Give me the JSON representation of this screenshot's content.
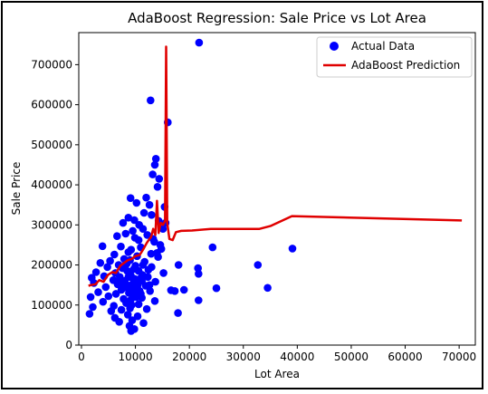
{
  "chart_data": {
    "type": "scatter",
    "title": "AdaBoost Regression: Sale Price vs Lot Area",
    "xlabel": "Lot Area",
    "ylabel": "Sale Price",
    "xlim": [
      -500,
      73000
    ],
    "ylim": [
      0,
      780000
    ],
    "xticks": [
      0,
      10000,
      20000,
      30000,
      40000,
      50000,
      60000,
      70000
    ],
    "yticks": [
      0,
      100000,
      200000,
      300000,
      400000,
      500000,
      600000,
      700000
    ],
    "legend": {
      "placement": "top-right",
      "entries": [
        "Actual Data",
        "AdaBoost Prediction"
      ]
    },
    "colors": {
      "scatter": "#0000ff",
      "line": "#e00000"
    },
    "series": [
      {
        "name": "Actual Data",
        "kind": "scatter",
        "points": [
          [
            21800,
            755000
          ],
          [
            12800,
            611000
          ],
          [
            16000,
            556000
          ],
          [
            13800,
            465000
          ],
          [
            13600,
            450000
          ],
          [
            13200,
            426000
          ],
          [
            14400,
            415000
          ],
          [
            14100,
            395000
          ],
          [
            12000,
            368000
          ],
          [
            9100,
            367000
          ],
          [
            10200,
            355000
          ],
          [
            12600,
            350000
          ],
          [
            15400,
            345000
          ],
          [
            13000,
            325000
          ],
          [
            11600,
            330000
          ],
          [
            8700,
            318000
          ],
          [
            9800,
            312000
          ],
          [
            7700,
            305000
          ],
          [
            10700,
            300000
          ],
          [
            11400,
            290000
          ],
          [
            9500,
            285000
          ],
          [
            8200,
            278000
          ],
          [
            12200,
            275000
          ],
          [
            6600,
            272000
          ],
          [
            9900,
            268000
          ],
          [
            10600,
            262000
          ],
          [
            13500,
            258000
          ],
          [
            14600,
            250000
          ],
          [
            3900,
            247000
          ],
          [
            7300,
            246000
          ],
          [
            11000,
            244000
          ],
          [
            24300,
            244000
          ],
          [
            39100,
            241000
          ],
          [
            9200,
            238000
          ],
          [
            8700,
            232000
          ],
          [
            12900,
            228000
          ],
          [
            6100,
            226000
          ],
          [
            10300,
            222000
          ],
          [
            14200,
            220000
          ],
          [
            7900,
            215000
          ],
          [
            9000,
            212000
          ],
          [
            5300,
            210000
          ],
          [
            11700,
            208000
          ],
          [
            3500,
            205000
          ],
          [
            8400,
            203000
          ],
          [
            6900,
            200000
          ],
          [
            10000,
            198000
          ],
          [
            32700,
            200000
          ],
          [
            18000,
            200000
          ],
          [
            4800,
            195000
          ],
          [
            7600,
            192000
          ],
          [
            9700,
            190000
          ],
          [
            21600,
            192000
          ],
          [
            12400,
            188000
          ],
          [
            2700,
            182000
          ],
          [
            6300,
            180000
          ],
          [
            8900,
            178000
          ],
          [
            15200,
            180000
          ],
          [
            21700,
            178000
          ],
          [
            11300,
            175000
          ],
          [
            4200,
            172000
          ],
          [
            7100,
            170000
          ],
          [
            9400,
            168000
          ],
          [
            1900,
            168000
          ],
          [
            10800,
            165000
          ],
          [
            5900,
            162000
          ],
          [
            8000,
            160000
          ],
          [
            13700,
            158000
          ],
          [
            2300,
            155000
          ],
          [
            6700,
            152000
          ],
          [
            9300,
            150000
          ],
          [
            11900,
            148000
          ],
          [
            4500,
            145000
          ],
          [
            8500,
            143000
          ],
          [
            10400,
            140000
          ],
          [
            25000,
            142000
          ],
          [
            34500,
            143000
          ],
          [
            7400,
            138000
          ],
          [
            16600,
            137000
          ],
          [
            17300,
            135000
          ],
          [
            19000,
            138000
          ],
          [
            12700,
            135000
          ],
          [
            3100,
            132000
          ],
          [
            8800,
            130000
          ],
          [
            6400,
            128000
          ],
          [
            10100,
            126000
          ],
          [
            5000,
            122000
          ],
          [
            9600,
            120000
          ],
          [
            11200,
            118000
          ],
          [
            1700,
            120000
          ],
          [
            7800,
            115000
          ],
          [
            9100,
            112000
          ],
          [
            21700,
            112000
          ],
          [
            13600,
            110000
          ],
          [
            4000,
            108000
          ],
          [
            8300,
            105000
          ],
          [
            10600,
            102000
          ],
          [
            6000,
            98000
          ],
          [
            2100,
            95000
          ],
          [
            9000,
            92000
          ],
          [
            12100,
            90000
          ],
          [
            7400,
            88000
          ],
          [
            5500,
            85000
          ],
          [
            17900,
            80000
          ],
          [
            1500,
            78000
          ],
          [
            8600,
            76000
          ],
          [
            10400,
            72000
          ],
          [
            6200,
            68000
          ],
          [
            9400,
            62000
          ],
          [
            7000,
            58000
          ],
          [
            11500,
            55000
          ],
          [
            8900,
            48000
          ],
          [
            9800,
            40000
          ],
          [
            9200,
            35000
          ],
          [
            8000,
            155000
          ],
          [
            8400,
            150000
          ],
          [
            8800,
            148000
          ],
          [
            9200,
            145000
          ],
          [
            9600,
            142000
          ],
          [
            10000,
            140000
          ],
          [
            10400,
            150000
          ],
          [
            10800,
            135000
          ],
          [
            11200,
            160000
          ],
          [
            9500,
            130000
          ],
          [
            9900,
            165000
          ],
          [
            8700,
            170000
          ],
          [
            9100,
            175000
          ],
          [
            7800,
            145000
          ],
          [
            10200,
            120000
          ],
          [
            10600,
            185000
          ],
          [
            11000,
            128000
          ],
          [
            11400,
            200000
          ],
          [
            9300,
            100000
          ],
          [
            9700,
            158000
          ],
          [
            8500,
            185000
          ],
          [
            7200,
            160000
          ],
          [
            12300,
            170000
          ],
          [
            12600,
            150000
          ],
          [
            13000,
            195000
          ],
          [
            13300,
            265000
          ],
          [
            14000,
            230000
          ],
          [
            14800,
            240000
          ],
          [
            15100,
            290000
          ],
          [
            15600,
            305000
          ],
          [
            14300,
            310000
          ]
        ]
      },
      {
        "name": "AdaBoost Prediction",
        "kind": "line",
        "points": [
          [
            1300,
            148000
          ],
          [
            1800,
            150000
          ],
          [
            2600,
            152000
          ],
          [
            3300,
            162000
          ],
          [
            4100,
            158000
          ],
          [
            4900,
            175000
          ],
          [
            5700,
            182000
          ],
          [
            6400,
            180000
          ],
          [
            7200,
            198000
          ],
          [
            7900,
            205000
          ],
          [
            8600,
            212000
          ],
          [
            9300,
            215000
          ],
          [
            10000,
            222000
          ],
          [
            10800,
            225000
          ],
          [
            11500,
            240000
          ],
          [
            12100,
            255000
          ],
          [
            12600,
            265000
          ],
          [
            12900,
            270000
          ],
          [
            13300,
            290000
          ],
          [
            13700,
            275000
          ],
          [
            14000,
            360000
          ],
          [
            14300,
            280000
          ],
          [
            14700,
            305000
          ],
          [
            15100,
            300000
          ],
          [
            15500,
            310000
          ],
          [
            15700,
            745000
          ],
          [
            15900,
            305000
          ],
          [
            16300,
            265000
          ],
          [
            16900,
            262000
          ],
          [
            17500,
            282000
          ],
          [
            18500,
            285000
          ],
          [
            20500,
            286000
          ],
          [
            24000,
            290000
          ],
          [
            33000,
            290000
          ],
          [
            35000,
            297000
          ],
          [
            39000,
            322000
          ],
          [
            70500,
            311000
          ]
        ]
      }
    ]
  }
}
